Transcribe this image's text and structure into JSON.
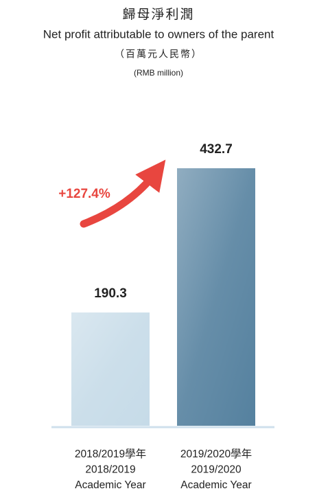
{
  "chart_data": {
    "type": "bar",
    "title": "歸母淨利潤",
    "subtitle": "Net profit attributable to owners of the parent",
    "unit_zh": "（百萬元人民幣）",
    "unit": "(RMB million)",
    "annotation": "+127.4%",
    "categories": [
      [
        "2018/2019學年",
        "2018/2019",
        "Academic Year"
      ],
      [
        "2019/2020學年",
        "2019/2020",
        "Academic Year"
      ]
    ],
    "values": [
      190.3,
      432.7
    ],
    "colors": [
      "#c6dbe8",
      "#55819f"
    ]
  }
}
